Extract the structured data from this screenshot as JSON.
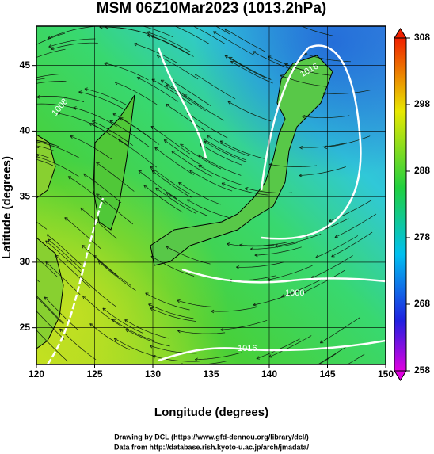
{
  "title": "MSM 06Z10Mar2023 (1013.2hPa)",
  "x_axis": {
    "label": "Longitude (degrees)",
    "range": [
      120,
      150
    ],
    "ticks": [
      120,
      125,
      130,
      135,
      140,
      145,
      150
    ]
  },
  "y_axis": {
    "label": "Latitude  (degrees)",
    "range": [
      22.2,
      48
    ],
    "ticks": [
      25,
      30,
      35,
      40,
      45
    ]
  },
  "colorbar": {
    "range": [
      258,
      308
    ],
    "ticks": [
      258,
      268,
      278,
      288,
      298,
      308
    ]
  },
  "contour_labels": [
    "1016",
    "1008",
    "1000",
    "1016"
  ],
  "footer": [
    "Drawing by DCL (https://www.gfd-dennou.org/library/dcl/)",
    "Data from http://database.rish.kyoto-u.ac.jp/arch/jmadata/"
  ]
}
